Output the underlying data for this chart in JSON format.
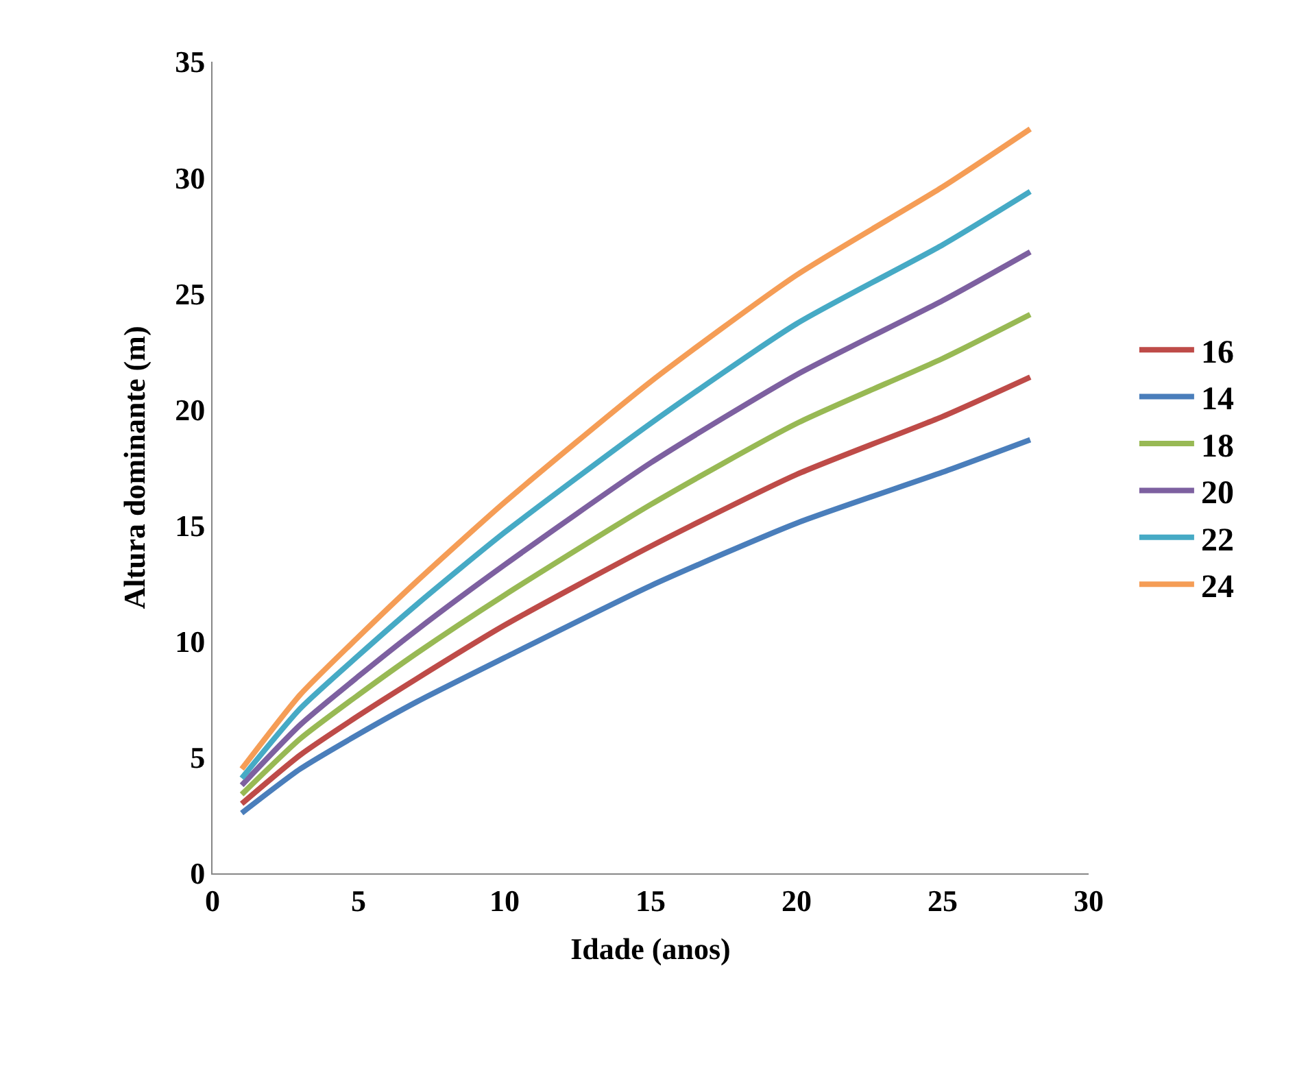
{
  "chart_data": {
    "type": "line",
    "xlabel": "Idade (anos)",
    "ylabel": "Altura dominante (m)",
    "x": [
      1,
      3,
      5,
      7,
      10,
      15,
      20,
      25,
      28
    ],
    "xlim": [
      0,
      30
    ],
    "xticks": [
      0,
      5,
      10,
      15,
      20,
      25,
      30
    ],
    "ylim": [
      0,
      35
    ],
    "yticks": [
      0,
      5,
      10,
      15,
      20,
      25,
      30,
      35
    ],
    "legend": "right",
    "marker": "none",
    "line_style": "solid",
    "series": [
      {
        "name": "16",
        "color": "#be4b48",
        "values": [
          3.0,
          5.1,
          6.8,
          8.4,
          10.7,
          14.1,
          17.2,
          19.7,
          21.4
        ]
      },
      {
        "name": "14",
        "color": "#4a7ebb",
        "values": [
          2.6,
          4.5,
          6.0,
          7.4,
          9.3,
          12.4,
          15.1,
          17.3,
          18.7
        ]
      },
      {
        "name": "18",
        "color": "#98b954",
        "values": [
          3.4,
          5.8,
          7.7,
          9.5,
          12.0,
          15.9,
          19.4,
          22.2,
          24.1
        ]
      },
      {
        "name": "20",
        "color": "#7d60a0",
        "values": [
          3.8,
          6.4,
          8.5,
          10.5,
          13.3,
          17.7,
          21.5,
          24.7,
          26.8
        ]
      },
      {
        "name": "22",
        "color": "#46aac5",
        "values": [
          4.1,
          7.1,
          9.4,
          11.6,
          14.7,
          19.4,
          23.7,
          27.1,
          29.4
        ]
      },
      {
        "name": "24",
        "color": "#f59d56",
        "values": [
          4.5,
          7.7,
          10.2,
          12.6,
          16.0,
          21.2,
          25.8,
          29.6,
          32.1
        ]
      }
    ]
  }
}
